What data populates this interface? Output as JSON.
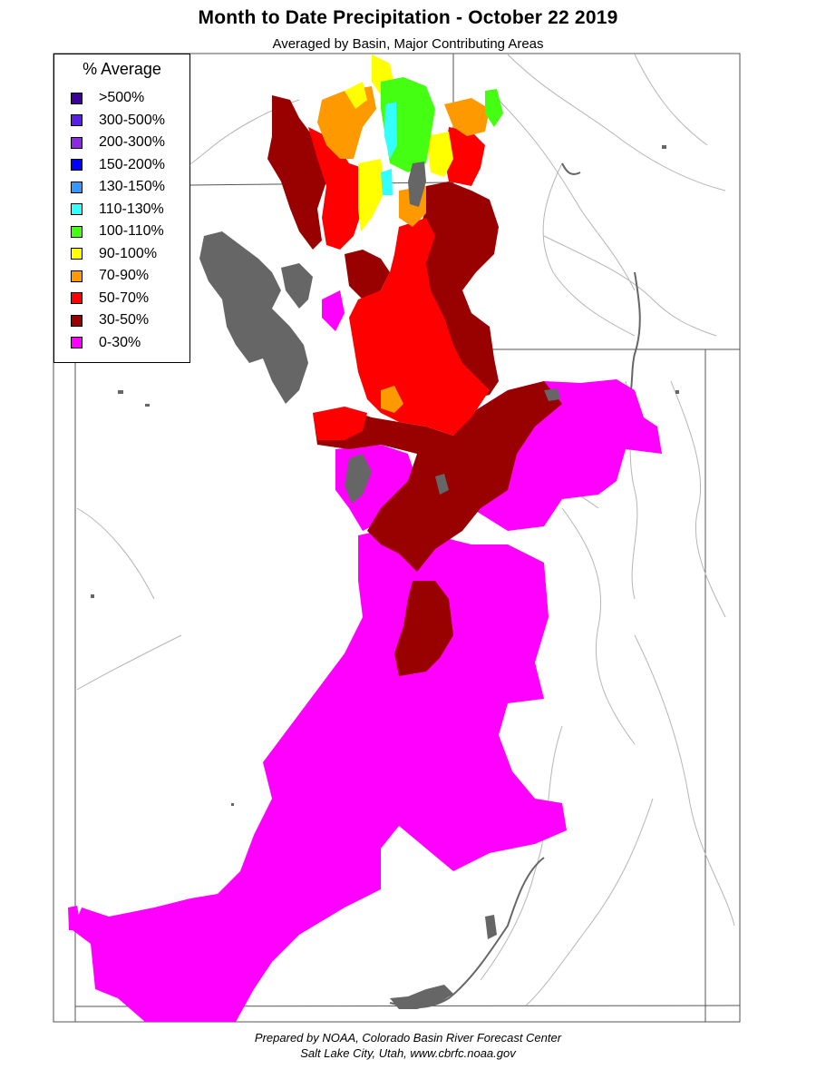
{
  "title": "Month to Date Precipitation - October 22 2019",
  "subtitle": "Averaged by Basin, Major Contributing Areas",
  "legend": {
    "title": "% Average",
    "items": [
      {
        "label": ">500%",
        "color": "#3d0099"
      },
      {
        "label": "300-500%",
        "color": "#5a1ee6"
      },
      {
        "label": "200-300%",
        "color": "#8a2be2"
      },
      {
        "label": "150-200%",
        "color": "#0000ff"
      },
      {
        "label": "130-150%",
        "color": "#3399ff"
      },
      {
        "label": "110-130%",
        "color": "#33ffff"
      },
      {
        "label": "100-110%",
        "color": "#44ff11"
      },
      {
        "label": "90-100%",
        "color": "#ffff00"
      },
      {
        "label": "70-90%",
        "color": "#ff9900"
      },
      {
        "label": "50-70%",
        "color": "#ff0000"
      },
      {
        "label": "30-50%",
        "color": "#990000"
      },
      {
        "label": "0-30%",
        "color": "#ff00ff"
      }
    ]
  },
  "colors": {
    "lake": "#666666",
    "boundary": "#666666",
    "river": "#aaaaaa"
  },
  "credit": {
    "line1": "Prepared by NOAA, Colorado Basin River Forecast Center",
    "line2": "Salt Lake City, Utah, www.cbrfc.noaa.gov"
  }
}
